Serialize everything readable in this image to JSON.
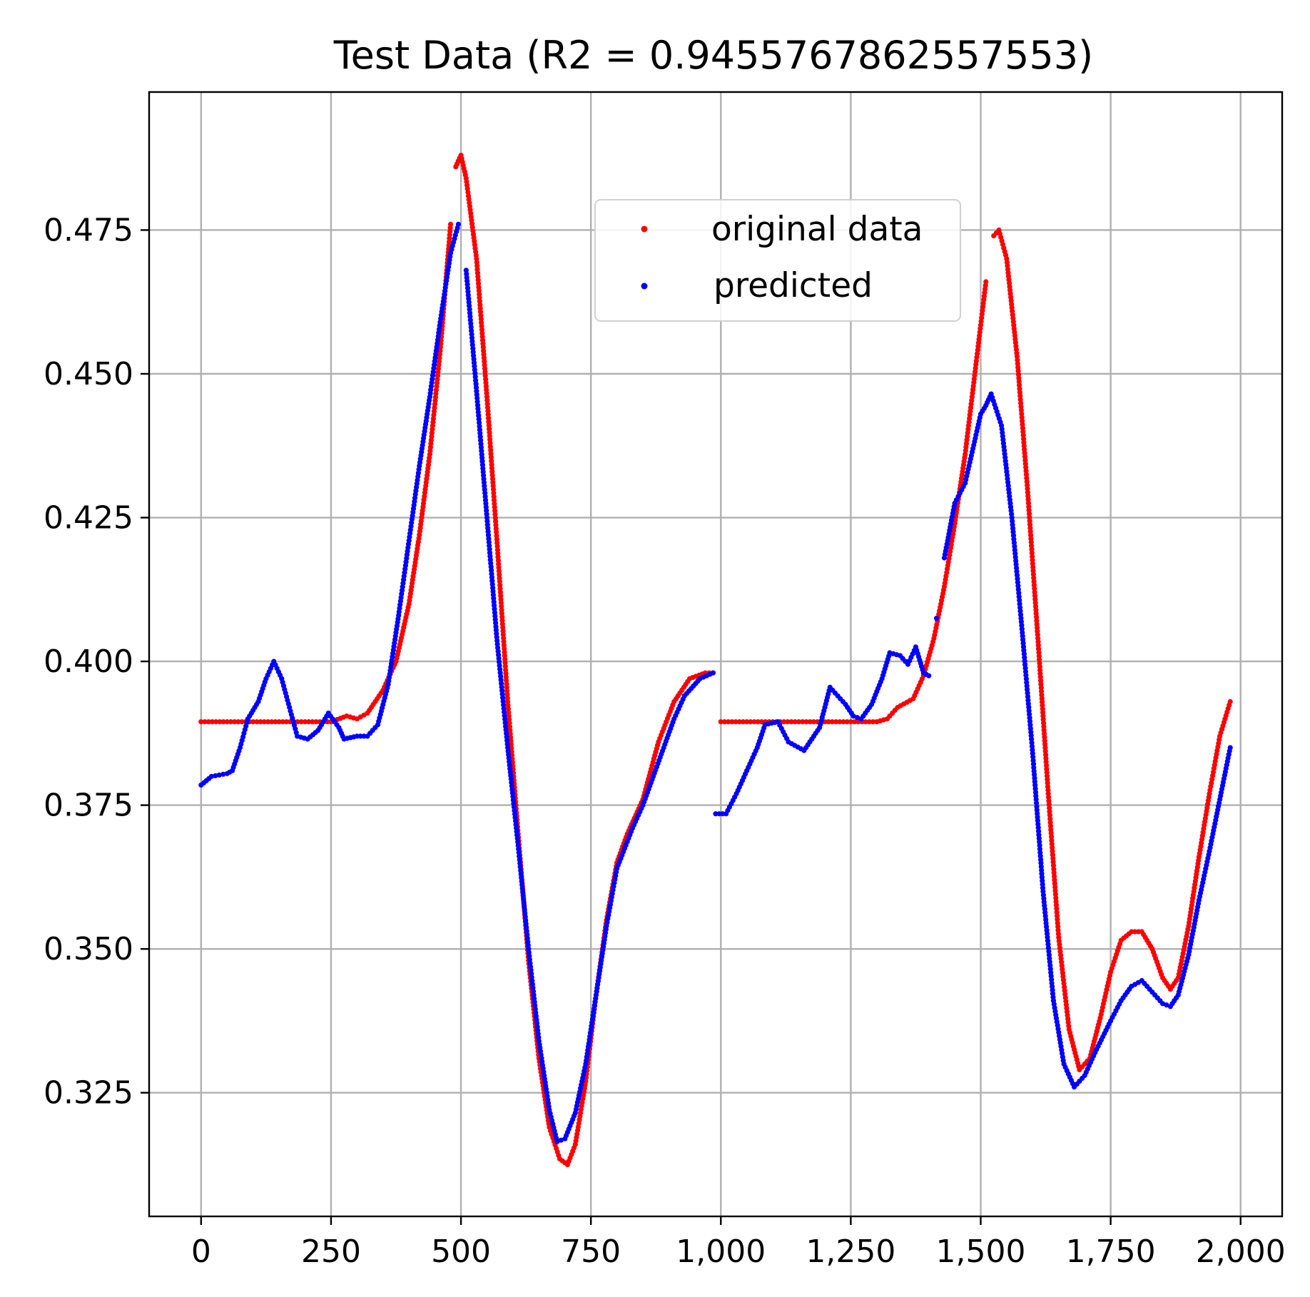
{
  "chart_data": {
    "type": "scatter",
    "title": "Test Data (R2 = 0.9455767862557553)",
    "xlabel": "",
    "ylabel": "",
    "xlim": [
      -100,
      2080
    ],
    "ylim": [
      0.3035,
      0.499
    ],
    "grid": true,
    "legend_position": "top-center",
    "x_ticks": [
      {
        "value": 0,
        "label": "0"
      },
      {
        "value": 250,
        "label": "250"
      },
      {
        "value": 500,
        "label": "500"
      },
      {
        "value": 750,
        "label": "750"
      },
      {
        "value": 1000,
        "label": "1,000"
      },
      {
        "value": 1250,
        "label": "1,250"
      },
      {
        "value": 1500,
        "label": "1,500"
      },
      {
        "value": 1750,
        "label": "1,750"
      },
      {
        "value": 2000,
        "label": "2,000"
      }
    ],
    "y_ticks": [
      {
        "value": 0.325,
        "label": "0.325"
      },
      {
        "value": 0.35,
        "label": "0.350"
      },
      {
        "value": 0.375,
        "label": "0.375"
      },
      {
        "value": 0.4,
        "label": "0.400"
      },
      {
        "value": 0.425,
        "label": "0.425"
      },
      {
        "value": 0.45,
        "label": "0.450"
      },
      {
        "value": 0.475,
        "label": "0.475"
      }
    ],
    "series": [
      {
        "name": "original data",
        "color": "#ff0000",
        "marker": "dot",
        "points": [
          [
            0,
            0.3895
          ],
          [
            50,
            0.3895
          ],
          [
            100,
            0.3895
          ],
          [
            150,
            0.3895
          ],
          [
            200,
            0.3895
          ],
          [
            250,
            0.3895
          ],
          [
            280,
            0.3905
          ],
          [
            300,
            0.39
          ],
          [
            320,
            0.391
          ],
          [
            350,
            0.395
          ],
          [
            375,
            0.4
          ],
          [
            400,
            0.41
          ],
          [
            420,
            0.422
          ],
          [
            440,
            0.436
          ],
          [
            460,
            0.454
          ],
          [
            480,
            0.476
          ],
          [
            490,
            0.486
          ],
          [
            500,
            0.488
          ],
          [
            510,
            0.484
          ],
          [
            530,
            0.47
          ],
          [
            550,
            0.446
          ],
          [
            570,
            0.42
          ],
          [
            590,
            0.393
          ],
          [
            610,
            0.37
          ],
          [
            630,
            0.348
          ],
          [
            650,
            0.331
          ],
          [
            670,
            0.319
          ],
          [
            690,
            0.3135
          ],
          [
            705,
            0.3125
          ],
          [
            720,
            0.316
          ],
          [
            740,
            0.327
          ],
          [
            760,
            0.342
          ],
          [
            780,
            0.355
          ],
          [
            800,
            0.365
          ],
          [
            820,
            0.37
          ],
          [
            850,
            0.376
          ],
          [
            880,
            0.386
          ],
          [
            910,
            0.393
          ],
          [
            940,
            0.397
          ],
          [
            970,
            0.398
          ],
          [
            985,
            0.398
          ],
          [
            1000,
            0.3895
          ],
          [
            1050,
            0.3895
          ],
          [
            1100,
            0.3895
          ],
          [
            1150,
            0.3895
          ],
          [
            1200,
            0.3895
          ],
          [
            1250,
            0.3895
          ],
          [
            1300,
            0.3895
          ],
          [
            1320,
            0.39
          ],
          [
            1340,
            0.392
          ],
          [
            1370,
            0.3935
          ],
          [
            1390,
            0.3975
          ],
          [
            1410,
            0.404
          ],
          [
            1430,
            0.413
          ],
          [
            1450,
            0.424
          ],
          [
            1470,
            0.436
          ],
          [
            1490,
            0.451
          ],
          [
            1510,
            0.466
          ],
          [
            1525,
            0.474
          ],
          [
            1535,
            0.475
          ],
          [
            1550,
            0.47
          ],
          [
            1570,
            0.453
          ],
          [
            1590,
            0.43
          ],
          [
            1610,
            0.404
          ],
          [
            1630,
            0.377
          ],
          [
            1650,
            0.352
          ],
          [
            1670,
            0.336
          ],
          [
            1690,
            0.329
          ],
          [
            1710,
            0.331
          ],
          [
            1730,
            0.338
          ],
          [
            1750,
            0.346
          ],
          [
            1770,
            0.3515
          ],
          [
            1790,
            0.353
          ],
          [
            1810,
            0.353
          ],
          [
            1830,
            0.35
          ],
          [
            1850,
            0.345
          ],
          [
            1865,
            0.343
          ],
          [
            1880,
            0.345
          ],
          [
            1900,
            0.354
          ],
          [
            1920,
            0.366
          ],
          [
            1940,
            0.377
          ],
          [
            1960,
            0.387
          ],
          [
            1980,
            0.393
          ]
        ]
      },
      {
        "name": "predicted",
        "color": "#0000ff",
        "marker": "dot",
        "points": [
          [
            0,
            0.3785
          ],
          [
            20,
            0.38
          ],
          [
            50,
            0.3805
          ],
          [
            60,
            0.381
          ],
          [
            75,
            0.385
          ],
          [
            90,
            0.39
          ],
          [
            110,
            0.393
          ],
          [
            125,
            0.397
          ],
          [
            140,
            0.4
          ],
          [
            155,
            0.397
          ],
          [
            170,
            0.392
          ],
          [
            185,
            0.387
          ],
          [
            205,
            0.3865
          ],
          [
            225,
            0.388
          ],
          [
            245,
            0.391
          ],
          [
            265,
            0.3885
          ],
          [
            275,
            0.3865
          ],
          [
            300,
            0.387
          ],
          [
            320,
            0.387
          ],
          [
            340,
            0.389
          ],
          [
            360,
            0.396
          ],
          [
            380,
            0.408
          ],
          [
            400,
            0.421
          ],
          [
            420,
            0.434
          ],
          [
            440,
            0.446
          ],
          [
            460,
            0.459
          ],
          [
            480,
            0.471
          ],
          [
            495,
            0.476
          ],
          [
            510,
            0.468
          ],
          [
            530,
            0.447
          ],
          [
            550,
            0.425
          ],
          [
            570,
            0.403
          ],
          [
            590,
            0.385
          ],
          [
            610,
            0.368
          ],
          [
            630,
            0.35
          ],
          [
            650,
            0.334
          ],
          [
            670,
            0.322
          ],
          [
            685,
            0.3165
          ],
          [
            700,
            0.317
          ],
          [
            720,
            0.3215
          ],
          [
            740,
            0.33
          ],
          [
            760,
            0.342
          ],
          [
            780,
            0.354
          ],
          [
            800,
            0.364
          ],
          [
            830,
            0.371
          ],
          [
            850,
            0.375
          ],
          [
            870,
            0.38
          ],
          [
            890,
            0.385
          ],
          [
            910,
            0.39
          ],
          [
            930,
            0.394
          ],
          [
            960,
            0.397
          ],
          [
            985,
            0.398
          ],
          [
            990,
            0.3735
          ],
          [
            1010,
            0.3735
          ],
          [
            1030,
            0.377
          ],
          [
            1050,
            0.381
          ],
          [
            1070,
            0.385
          ],
          [
            1085,
            0.389
          ],
          [
            1110,
            0.3895
          ],
          [
            1130,
            0.386
          ],
          [
            1160,
            0.3845
          ],
          [
            1190,
            0.3885
          ],
          [
            1210,
            0.3955
          ],
          [
            1225,
            0.394
          ],
          [
            1240,
            0.3925
          ],
          [
            1255,
            0.3905
          ],
          [
            1270,
            0.39
          ],
          [
            1290,
            0.3925
          ],
          [
            1310,
            0.397
          ],
          [
            1325,
            0.4015
          ],
          [
            1345,
            0.401
          ],
          [
            1360,
            0.3995
          ],
          [
            1375,
            0.4025
          ],
          [
            1390,
            0.398
          ],
          [
            1400,
            0.3975
          ],
          [
            1415,
            0.4075
          ],
          [
            1430,
            0.418
          ],
          [
            1450,
            0.4275
          ],
          [
            1470,
            0.431
          ],
          [
            1485,
            0.437
          ],
          [
            1500,
            0.443
          ],
          [
            1510,
            0.4445
          ],
          [
            1520,
            0.4465
          ],
          [
            1540,
            0.441
          ],
          [
            1560,
            0.425
          ],
          [
            1580,
            0.405
          ],
          [
            1600,
            0.384
          ],
          [
            1620,
            0.36
          ],
          [
            1640,
            0.341
          ],
          [
            1660,
            0.33
          ],
          [
            1680,
            0.326
          ],
          [
            1700,
            0.328
          ],
          [
            1720,
            0.332
          ],
          [
            1750,
            0.3375
          ],
          [
            1770,
            0.341
          ],
          [
            1790,
            0.3435
          ],
          [
            1810,
            0.3445
          ],
          [
            1830,
            0.3425
          ],
          [
            1850,
            0.3405
          ],
          [
            1865,
            0.34
          ],
          [
            1880,
            0.342
          ],
          [
            1900,
            0.349
          ],
          [
            1920,
            0.3585
          ],
          [
            1940,
            0.367
          ],
          [
            1960,
            0.376
          ],
          [
            1980,
            0.385
          ]
        ]
      }
    ]
  }
}
